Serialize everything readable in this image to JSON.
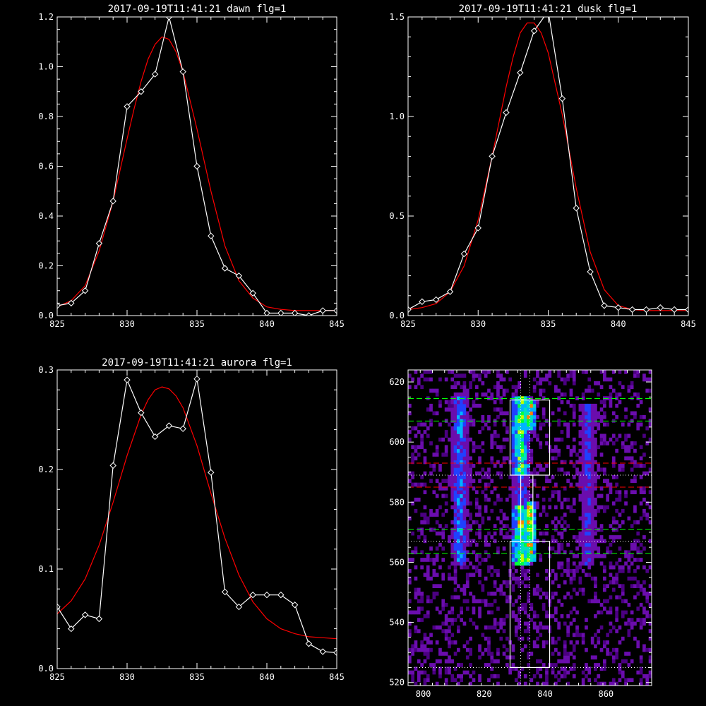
{
  "chart_data": [
    {
      "type": "line",
      "title": "2017-09-19T11:41:21 dawn flg=1",
      "xlim": [
        825,
        845
      ],
      "ylim": [
        0,
        1.2
      ],
      "xticks": [
        "825",
        "830",
        "835",
        "840",
        "845"
      ],
      "yticks": [
        "0.0",
        "0.2",
        "0.4",
        "0.6",
        "0.8",
        "1.0",
        "1.2"
      ],
      "series": [
        {
          "color": "#ffffff",
          "marker": "diamond",
          "x": [
            825,
            826,
            827,
            828,
            829,
            830,
            831,
            832,
            833,
            834,
            835,
            836,
            837,
            838,
            839,
            840,
            841,
            842,
            843,
            844,
            845
          ],
          "y": [
            0.04,
            0.05,
            0.1,
            0.29,
            0.46,
            0.84,
            0.9,
            0.97,
            1.2,
            0.98,
            0.6,
            0.32,
            0.19,
            0.16,
            0.09,
            0.01,
            0.01,
            0.01,
            0.0,
            0.02,
            0.02
          ]
        },
        {
          "color": "#ff0000",
          "x": [
            825,
            826,
            827,
            828,
            829,
            830,
            830.5,
            831,
            831.5,
            832,
            832.5,
            833,
            833.5,
            834,
            835,
            836,
            837,
            838,
            839,
            840,
            841,
            842,
            843,
            845
          ],
          "y": [
            0.035,
            0.06,
            0.12,
            0.26,
            0.46,
            0.71,
            0.83,
            0.94,
            1.03,
            1.09,
            1.12,
            1.11,
            1.06,
            0.98,
            0.75,
            0.5,
            0.28,
            0.14,
            0.07,
            0.035,
            0.025,
            0.02,
            0.02,
            0.02
          ]
        }
      ]
    },
    {
      "type": "line",
      "title": "2017-09-19T11:41:21 dusk flg=1",
      "xlim": [
        825,
        845
      ],
      "ylim": [
        0,
        1.5
      ],
      "xticks": [
        "825",
        "830",
        "835",
        "840",
        "845"
      ],
      "yticks": [
        "0.0",
        "0.5",
        "1.0",
        "1.5"
      ],
      "series": [
        {
          "color": "#ffffff",
          "marker": "diamond",
          "x": [
            825,
            826,
            827,
            828,
            829,
            830,
            831,
            832,
            833,
            834,
            835,
            836,
            837,
            838,
            839,
            840,
            841,
            842,
            843,
            844,
            845
          ],
          "y": [
            0.03,
            0.07,
            0.08,
            0.12,
            0.31,
            0.44,
            0.8,
            1.02,
            1.22,
            1.43,
            1.53,
            1.09,
            0.54,
            0.22,
            0.05,
            0.04,
            0.03,
            0.03,
            0.04,
            0.03,
            0.03
          ]
        },
        {
          "color": "#ff0000",
          "x": [
            825,
            826,
            827,
            828,
            829,
            830,
            831,
            832,
            832.5,
            833,
            833.5,
            834,
            834.5,
            835,
            836,
            837,
            838,
            839,
            840,
            841,
            842,
            845
          ],
          "y": [
            0.03,
            0.04,
            0.06,
            0.12,
            0.25,
            0.48,
            0.8,
            1.15,
            1.3,
            1.42,
            1.47,
            1.47,
            1.42,
            1.32,
            1.01,
            0.64,
            0.32,
            0.13,
            0.05,
            0.03,
            0.025,
            0.025
          ]
        }
      ]
    },
    {
      "type": "line",
      "title": "2017-09-19T11:41:21 aurora flg=1",
      "xlim": [
        825,
        845
      ],
      "ylim": [
        0,
        0.3
      ],
      "xticks": [
        "825",
        "830",
        "835",
        "840",
        "845"
      ],
      "yticks": [
        "0.0",
        "0.1",
        "0.2",
        "0.3"
      ],
      "series": [
        {
          "color": "#ffffff",
          "marker": "diamond",
          "x": [
            825,
            826,
            827,
            828,
            829,
            830,
            831,
            832,
            833,
            834,
            835,
            836,
            837,
            838,
            839,
            840,
            841,
            842,
            843,
            844,
            845
          ],
          "y": [
            0.062,
            0.04,
            0.054,
            0.05,
            0.204,
            0.29,
            0.257,
            0.233,
            0.244,
            0.241,
            0.291,
            0.197,
            0.077,
            0.062,
            0.074,
            0.074,
            0.074,
            0.064,
            0.025,
            0.017,
            0.016
          ]
        },
        {
          "color": "#ff0000",
          "x": [
            825,
            826,
            827,
            828,
            829,
            830,
            831,
            831.5,
            832,
            832.5,
            833,
            833.5,
            834,
            835,
            836,
            837,
            838,
            839,
            840,
            841,
            842,
            843,
            844,
            845
          ],
          "y": [
            0.055,
            0.068,
            0.09,
            0.124,
            0.167,
            0.214,
            0.255,
            0.27,
            0.28,
            0.283,
            0.281,
            0.274,
            0.262,
            0.224,
            0.176,
            0.131,
            0.094,
            0.067,
            0.05,
            0.04,
            0.035,
            0.032,
            0.031,
            0.03
          ]
        }
      ]
    },
    {
      "type": "heatmap",
      "xlim": [
        795,
        875
      ],
      "ylim": [
        519,
        624
      ],
      "xticks": [
        "800",
        "820",
        "840",
        "860"
      ],
      "yticks": [
        "520",
        "540",
        "560",
        "580",
        "600",
        "620"
      ],
      "colormap": [
        "#4b0082",
        "#6a0dad",
        "#2040ff",
        "#00b4ff",
        "#00e0c0",
        "#00ff40",
        "#c0ff00",
        "#ff8000",
        "#ff0000"
      ],
      "emission_columns": [
        {
          "x": 812,
          "half_width": 3,
          "rows": [
            [
              558,
              616,
              0.35
            ]
          ]
        },
        {
          "x": 832,
          "half_width": 3,
          "rows": [
            [
              589,
              615,
              0.75
            ],
            [
              558,
              578,
              0.8
            ],
            [
              578,
              589,
              0.3
            ]
          ]
        },
        {
          "x": 835,
          "half_width": 2,
          "rows": [
            [
              560,
              580,
              0.9
            ],
            [
              604,
              613,
              0.85
            ]
          ]
        },
        {
          "x": 854,
          "half_width": 3,
          "rows": [
            [
              558,
              612,
              0.25
            ]
          ]
        }
      ],
      "boxes": [
        {
          "x": [
            828.5,
            841.5
          ],
          "y": [
            589,
            614
          ]
        },
        {
          "x": [
            828.5,
            841.5
          ],
          "y": [
            525,
            567
          ]
        },
        {
          "x": [
            832,
            836
          ],
          "y": [
            567,
            589
          ]
        }
      ],
      "hlines": [
        {
          "y": 614.5,
          "color": "#00ff00",
          "style": "dashed"
        },
        {
          "y": 607,
          "color": "#00ff00",
          "style": "dashed"
        },
        {
          "y": 593,
          "color": "#ff0000",
          "style": "dashed"
        },
        {
          "y": 589,
          "color": "#ffffff",
          "style": "dotted"
        },
        {
          "y": 585,
          "color": "#ff0000",
          "style": "dashed"
        },
        {
          "y": 571,
          "color": "#00ff00",
          "style": "dashed"
        },
        {
          "y": 567,
          "color": "#ffffff",
          "style": "dotted"
        },
        {
          "y": 563,
          "color": "#00ff00",
          "style": "dashed"
        },
        {
          "y": 525,
          "color": "#ffffff",
          "style": "dotted"
        }
      ],
      "vlines": [
        {
          "x": 832,
          "color": "#ffffff",
          "style": "dotted"
        },
        {
          "x": 835,
          "color": "#ffffff",
          "style": "dotted"
        }
      ]
    }
  ]
}
